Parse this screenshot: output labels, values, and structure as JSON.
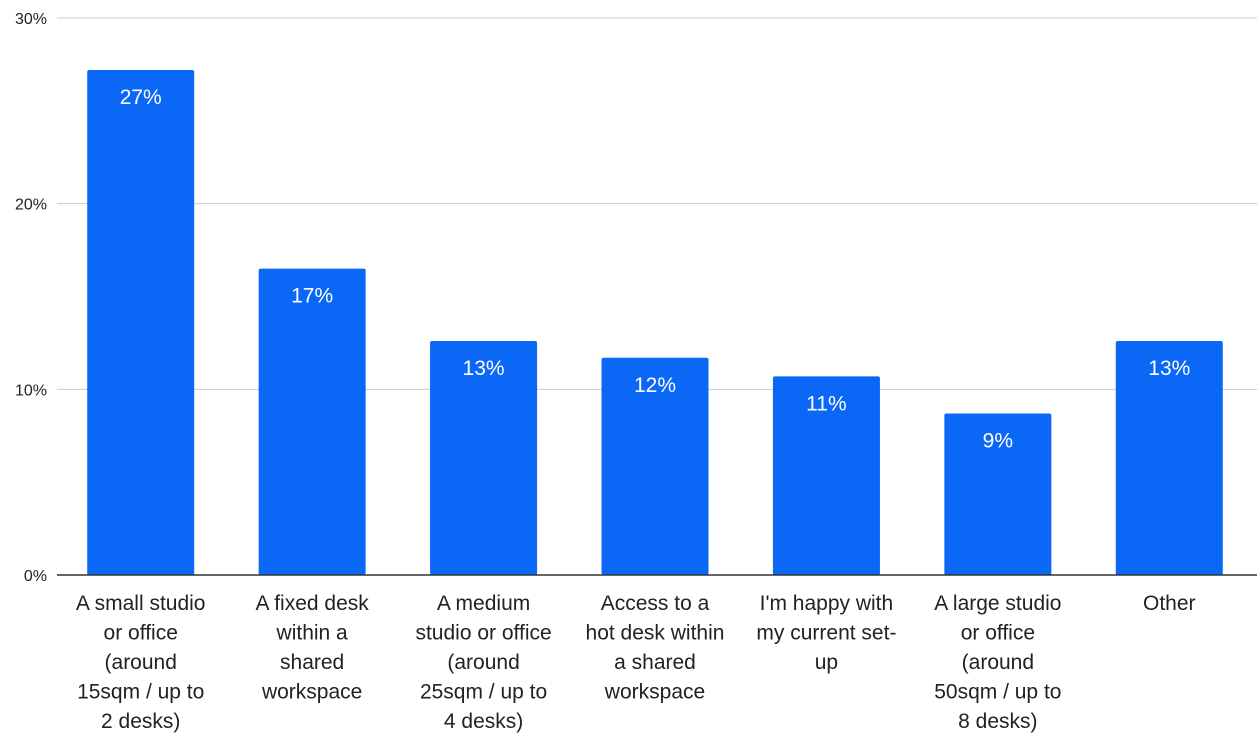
{
  "chart_data": {
    "type": "bar",
    "categories": [
      [
        "A small studio",
        "or office",
        "(around",
        "15sqm / up to",
        "2 desks)"
      ],
      [
        "A fixed desk",
        "within a",
        "shared",
        "workspace"
      ],
      [
        "A medium",
        "studio or office",
        "(around",
        "25sqm / up to",
        "4 desks)"
      ],
      [
        "Access to a",
        "hot desk within",
        "a shared",
        "workspace"
      ],
      [
        "I'm happy with",
        "my current set-",
        "up"
      ],
      [
        "A large studio",
        "or office",
        "(around",
        "50sqm / up to",
        "8 desks)"
      ],
      [
        "Other"
      ]
    ],
    "values": [
      27.2,
      16.5,
      12.6,
      11.7,
      10.7,
      8.7,
      12.6
    ],
    "data_labels": [
      "27%",
      "17%",
      "13%",
      "12%",
      "11%",
      "9%",
      "13%"
    ],
    "y_ticks": [
      0,
      10,
      20,
      30
    ],
    "y_tick_labels": [
      "0%",
      "10%",
      "20%",
      "30%"
    ],
    "ylim": [
      0,
      30
    ],
    "grid": true,
    "legend": "none",
    "bar_color": "#0B68F7"
  }
}
